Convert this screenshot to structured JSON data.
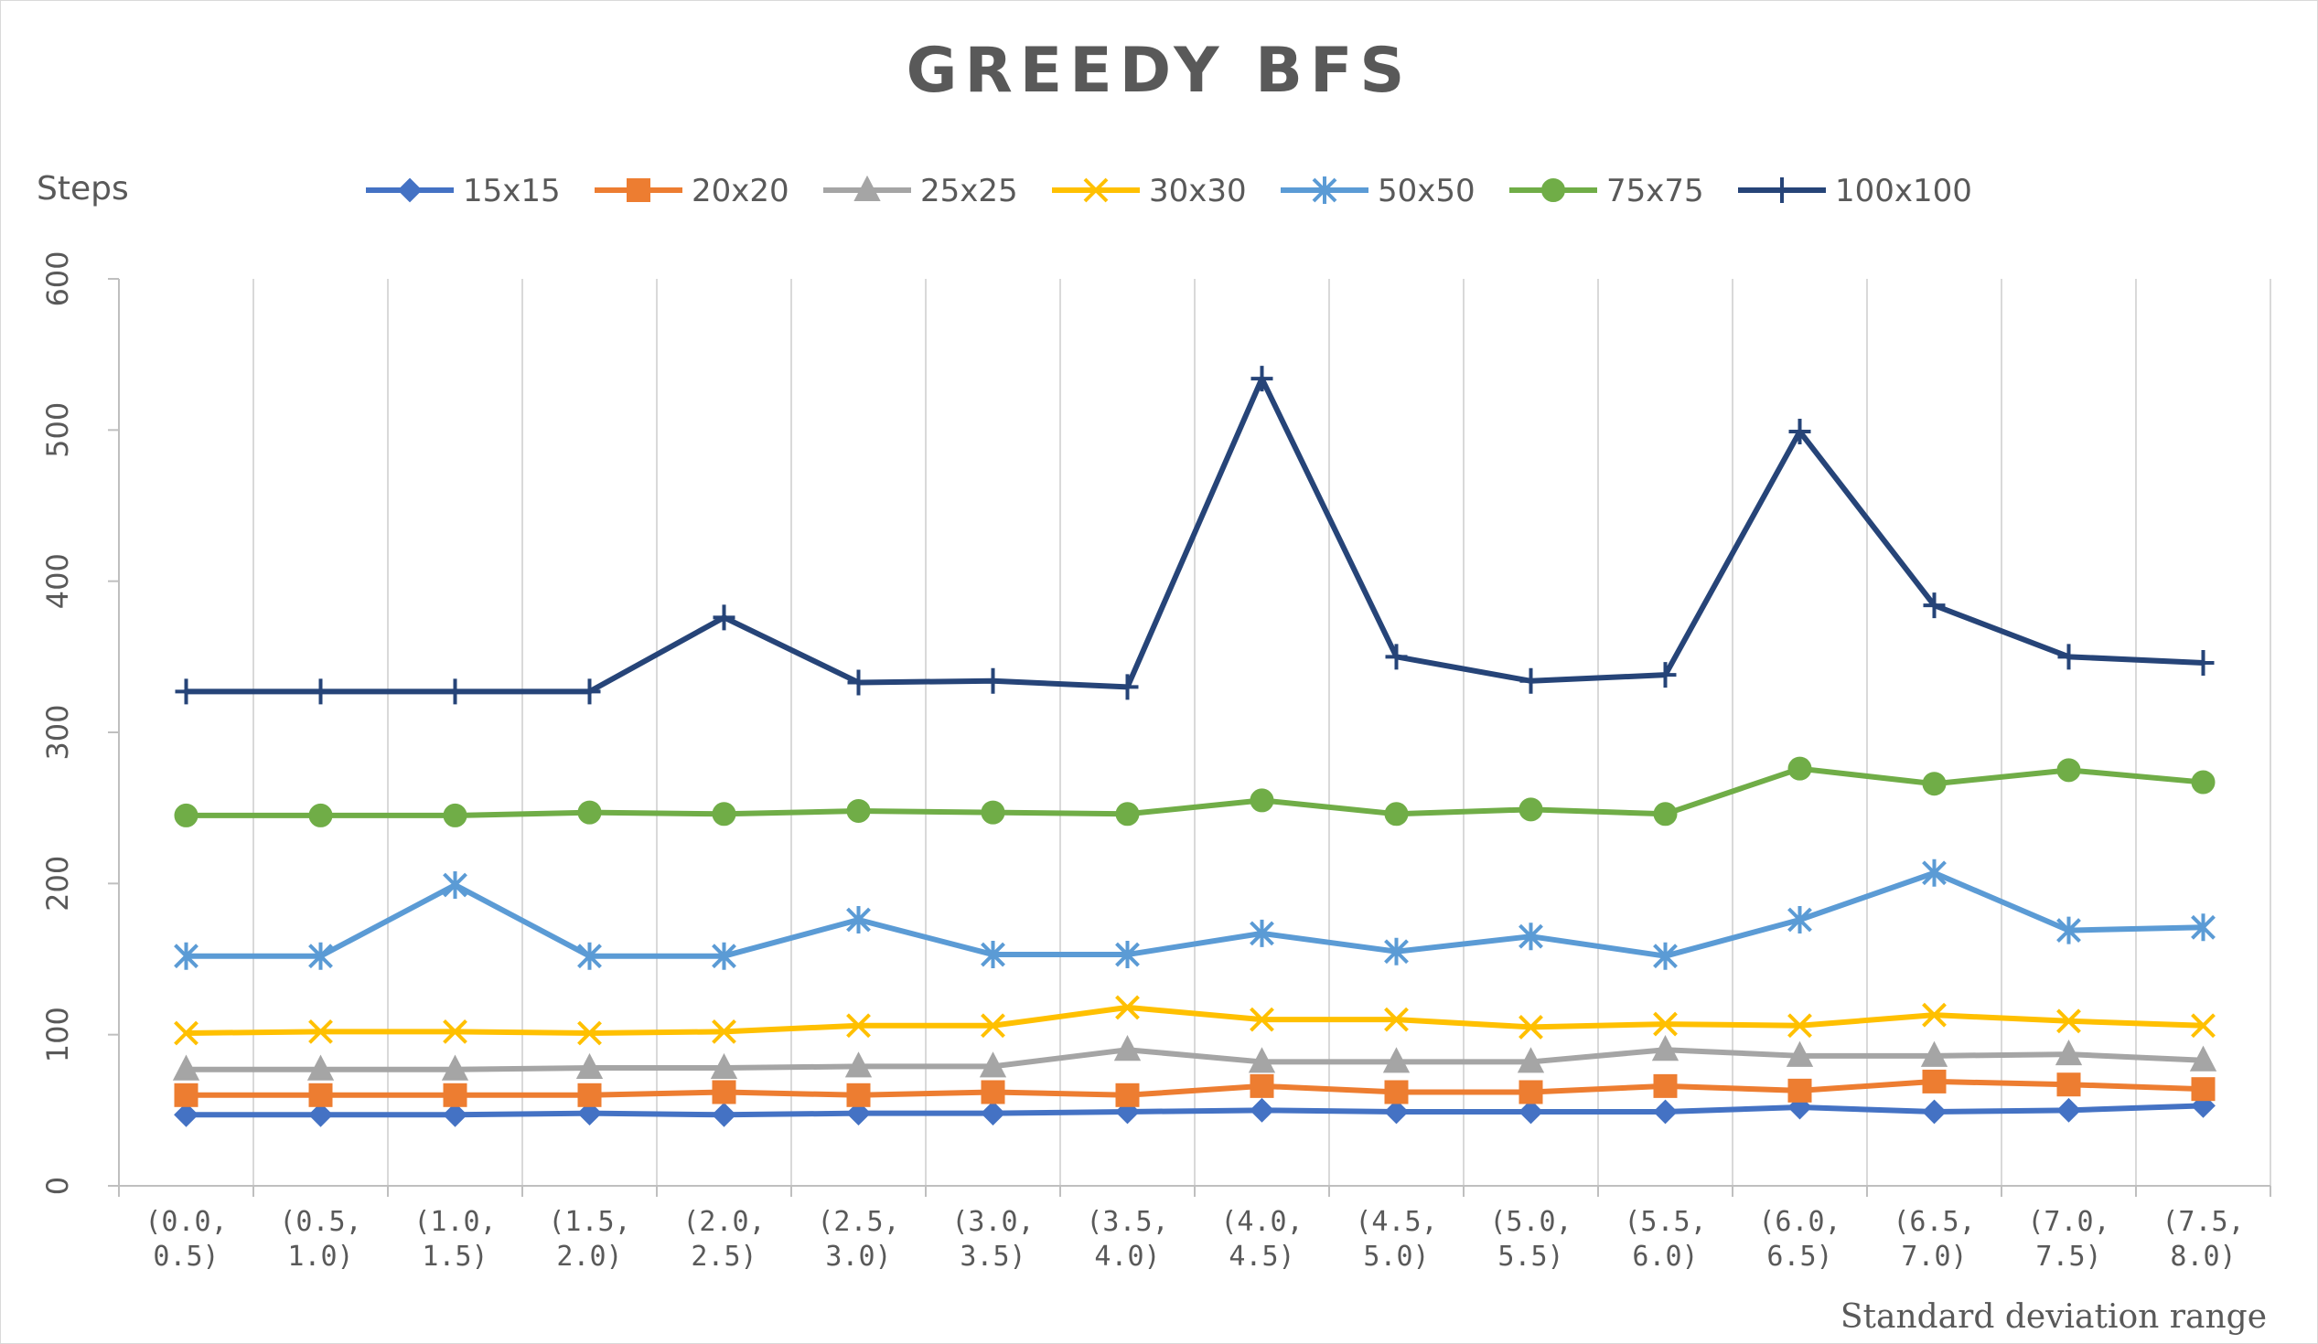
{
  "chart_data": {
    "type": "line",
    "title": "GREEDY BFS",
    "ylabel": "Steps",
    "xlabel": "Standard deviation range",
    "ylim": [
      0,
      600
    ],
    "yticks": [
      0,
      100,
      200,
      300,
      400,
      500,
      600
    ],
    "grid": "vertical",
    "legend_position": "top",
    "categories": [
      [
        "(0.0,",
        "0.5)"
      ],
      [
        "(0.5,",
        "1.0)"
      ],
      [
        "(1.0,",
        "1.5)"
      ],
      [
        "(1.5,",
        "2.0)"
      ],
      [
        "(2.0,",
        "2.5)"
      ],
      [
        "(2.5,",
        "3.0)"
      ],
      [
        "(3.0,",
        "3.5)"
      ],
      [
        "(3.5,",
        "4.0)"
      ],
      [
        "(4.0,",
        "4.5)"
      ],
      [
        "(4.5,",
        "5.0)"
      ],
      [
        "(5.0,",
        "5.5)"
      ],
      [
        "(5.5,",
        "6.0)"
      ],
      [
        "(6.0,",
        "6.5)"
      ],
      [
        "(6.5,",
        "7.0)"
      ],
      [
        "(7.0,",
        "7.5)"
      ],
      [
        "(7.5,",
        "8.0)"
      ]
    ],
    "series": [
      {
        "name": "15x15",
        "color": "#4472C4",
        "marker": "diamond",
        "values": [
          47,
          47,
          47,
          48,
          47,
          48,
          48,
          49,
          50,
          49,
          49,
          49,
          52,
          49,
          50,
          53
        ]
      },
      {
        "name": "20x20",
        "color": "#ED7D31",
        "marker": "square",
        "values": [
          60,
          60,
          60,
          60,
          62,
          60,
          62,
          60,
          66,
          62,
          62,
          66,
          63,
          69,
          67,
          64
        ]
      },
      {
        "name": "25x25",
        "color": "#A5A5A5",
        "marker": "triangle",
        "values": [
          77,
          77,
          77,
          78,
          78,
          79,
          79,
          90,
          82,
          82,
          82,
          90,
          86,
          86,
          87,
          83
        ]
      },
      {
        "name": "30x30",
        "color": "#FFC000",
        "marker": "x",
        "values": [
          101,
          102,
          102,
          101,
          102,
          106,
          106,
          118,
          110,
          110,
          105,
          107,
          106,
          113,
          109,
          106
        ]
      },
      {
        "name": "50x50",
        "color": "#5B9BD5",
        "marker": "star",
        "values": [
          152,
          152,
          199,
          152,
          152,
          176,
          153,
          153,
          167,
          155,
          165,
          152,
          176,
          207,
          169,
          171
        ]
      },
      {
        "name": "75x75",
        "color": "#70AD47",
        "marker": "circle",
        "values": [
          245,
          245,
          245,
          247,
          246,
          248,
          247,
          246,
          255,
          246,
          249,
          246,
          276,
          266,
          275,
          267
        ]
      },
      {
        "name": "100x100",
        "color": "#264478",
        "marker": "plus",
        "values": [
          327,
          327,
          327,
          327,
          376,
          333,
          334,
          330,
          534,
          350,
          334,
          338,
          499,
          384,
          350,
          346
        ]
      }
    ]
  }
}
